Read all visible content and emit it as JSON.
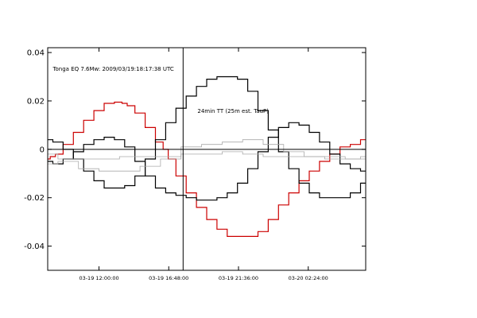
{
  "chart_data": {
    "type": "line",
    "title": "",
    "xlabel": "",
    "ylabel": "",
    "ylim": [
      -0.05,
      0.042
    ],
    "xlim_hours": [
      8.0,
      39.0
    ],
    "grid": false,
    "legend": "none",
    "y_ticks": [
      {
        "value": 0.04,
        "label": "0.04"
      },
      {
        "value": 0.02,
        "label": "0.02"
      },
      {
        "value": 0.0,
        "label": "0"
      },
      {
        "value": -0.02,
        "label": "-0.02"
      },
      {
        "value": -0.04,
        "label": "-0.04"
      }
    ],
    "x_ticks": [
      {
        "value": 13.0,
        "label": "03-19 12:00:00"
      },
      {
        "value": 19.8,
        "label": "03-19 16:48:00"
      },
      {
        "value": 26.6,
        "label": "03-19 21:36:00"
      },
      {
        "value": 33.4,
        "label": "03-20 02:24:00"
      }
    ],
    "annotations": [
      {
        "text": "Tonga EQ 7.6Mw: 2009/03/19:18:17:38 UTC",
        "x": 8.5,
        "y": 0.0325
      },
      {
        "text": "24min TT (25m est. TauP)",
        "x": 22.6,
        "y": 0.015
      }
    ],
    "vline": {
      "x": 21.2
    },
    "series": [
      {
        "name": "",
        "color": "#cc0000",
        "x": [
          8.0,
          8.5,
          9.0,
          10.0,
          11.0,
          12.0,
          13.0,
          14.0,
          15.0,
          15.5,
          16.0,
          17.0,
          18.0,
          19.0,
          19.5,
          20.0,
          21.0,
          22.0,
          23.0,
          24.0,
          25.0,
          26.0,
          27.0,
          28.0,
          29.0,
          30.0,
          31.0,
          32.0,
          33.0,
          34.0,
          35.0,
          36.0,
          37.0,
          38.0,
          39.0
        ],
        "y": [
          -0.004,
          -0.003,
          -0.002,
          0.002,
          0.007,
          0.012,
          0.016,
          0.019,
          0.0195,
          0.019,
          0.018,
          0.015,
          0.009,
          0.003,
          0.0,
          -0.004,
          -0.011,
          -0.018,
          -0.024,
          -0.029,
          -0.033,
          -0.036,
          -0.036,
          -0.036,
          -0.034,
          -0.029,
          -0.023,
          -0.018,
          -0.013,
          -0.009,
          -0.005,
          -0.002,
          0.001,
          0.002,
          0.004
        ]
      },
      {
        "name": "",
        "color": "#000000",
        "x": [
          8.0,
          9.0,
          10.0,
          11.0,
          12.0,
          13.0,
          14.0,
          15.0,
          16.0,
          17.0,
          18.0,
          19.0,
          20.0,
          21.0,
          22.0,
          23.0,
          24.0,
          25.0,
          26.0,
          27.0,
          28.0,
          29.0,
          30.0,
          31.0,
          32.0,
          33.0,
          34.0,
          35.0,
          36.0,
          37.0,
          38.0,
          39.0
        ],
        "y": [
          -0.005,
          -0.006,
          -0.004,
          -0.001,
          0.002,
          0.004,
          0.005,
          0.004,
          0.001,
          -0.005,
          -0.011,
          -0.016,
          -0.018,
          -0.019,
          -0.02,
          -0.021,
          -0.021,
          -0.02,
          -0.018,
          -0.014,
          -0.008,
          -0.001,
          0.005,
          0.009,
          0.011,
          0.01,
          0.007,
          0.003,
          -0.002,
          -0.006,
          -0.008,
          -0.009
        ]
      },
      {
        "name": "",
        "color": "#000000",
        "x": [
          8.0,
          9.0,
          10.0,
          11.0,
          12.0,
          13.0,
          14.0,
          15.0,
          16.0,
          17.0,
          18.0,
          19.0,
          20.0,
          21.0,
          22.0,
          23.0,
          24.0,
          25.0,
          26.0,
          27.0,
          28.0,
          29.0,
          30.0,
          31.0,
          32.0,
          33.0,
          34.0,
          35.0,
          36.0,
          37.0,
          38.0,
          39.0
        ],
        "y": [
          0.004,
          0.003,
          0.0,
          -0.004,
          -0.009,
          -0.013,
          -0.016,
          -0.016,
          -0.015,
          -0.011,
          -0.004,
          0.004,
          0.011,
          0.017,
          0.022,
          0.026,
          0.029,
          0.03,
          0.03,
          0.029,
          0.024,
          0.016,
          0.008,
          -0.001,
          -0.008,
          -0.014,
          -0.018,
          -0.02,
          -0.02,
          -0.02,
          -0.018,
          -0.014
        ]
      },
      {
        "name": "",
        "color": "#aaaaaa",
        "x": [
          8.0,
          10.0,
          12.0,
          14.0,
          16.0,
          18.0,
          20.0,
          22.0,
          24.0,
          26.0,
          28.0,
          30.0,
          32.0,
          34.0,
          36.0,
          38.0,
          39.0
        ],
        "y": [
          -0.006,
          -0.005,
          -0.008,
          -0.009,
          -0.009,
          -0.007,
          -0.004,
          0.001,
          0.002,
          0.003,
          0.004,
          0.002,
          -0.001,
          -0.003,
          -0.004,
          -0.004,
          -0.003
        ]
      },
      {
        "name": "",
        "color": "#aaaaaa",
        "x": [
          8.0,
          10.0,
          12.0,
          14.0,
          16.0,
          18.0,
          20.0,
          22.0,
          24.0,
          26.0,
          28.0,
          30.0,
          32.0,
          34.0,
          36.0,
          38.0,
          39.0
        ],
        "y": [
          -0.002,
          -0.004,
          -0.004,
          -0.004,
          -0.003,
          -0.003,
          -0.003,
          -0.002,
          -0.002,
          -0.001,
          -0.002,
          -0.003,
          -0.003,
          -0.003,
          -0.003,
          -0.004,
          -0.004
        ]
      }
    ]
  }
}
